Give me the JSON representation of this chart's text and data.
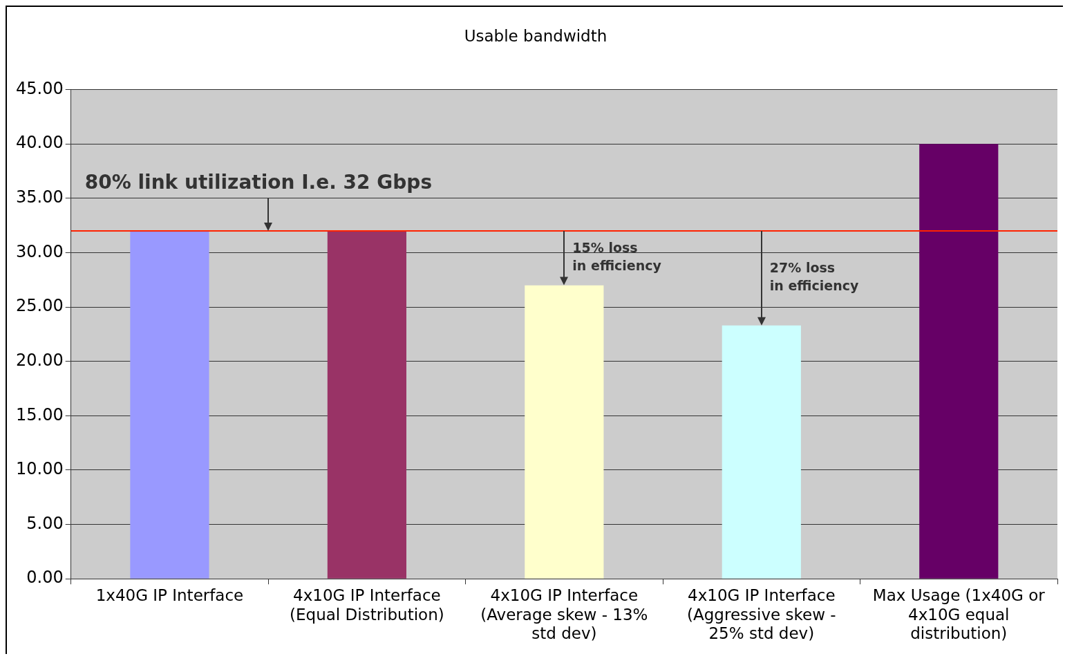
{
  "chart_data": {
    "type": "bar",
    "title": "Usable bandwidth",
    "categories": [
      "1x40G IP Interface",
      "4x10G IP Interface (Equal Distribution)",
      "4x10G IP Interface (Average skew - 13% std dev)",
      "4x10G IP Interface (Aggressive skew - 25% std dev)",
      "Max Usage (1x40G or 4x10G equal distribution)"
    ],
    "values": [
      32,
      32,
      27.0,
      23.3,
      40
    ],
    "colors": [
      "#9999ff",
      "#993366",
      "#ffffcc",
      "#ccffff",
      "#660066"
    ],
    "ylim": [
      0,
      45
    ],
    "yticks": [
      {
        "value": 0,
        "label": "0.00"
      },
      {
        "value": 5,
        "label": "5.00"
      },
      {
        "value": 10,
        "label": "10.00"
      },
      {
        "value": 15,
        "label": "15.00"
      },
      {
        "value": 20,
        "label": "20.00"
      },
      {
        "value": 25,
        "label": "25.00"
      },
      {
        "value": 30,
        "label": "30.00"
      },
      {
        "value": 35,
        "label": "35.00"
      },
      {
        "value": 40,
        "label": "40.00"
      },
      {
        "value": 45,
        "label": "45.00"
      }
    ],
    "grid": "y",
    "legend": false,
    "ref_lines": [
      {
        "axis": "y",
        "value": 32,
        "label": "80% link utilization I.e. 32 Gbps",
        "color": "#ff2200"
      }
    ],
    "annotations": [
      {
        "text": "15% loss\nin efficiency",
        "x": "4x10G IP Interface (Average skew - 13% std dev)",
        "y": 27.0
      },
      {
        "text": "27% loss\nin efficiency",
        "x": "4x10G IP Interface (Aggressive skew - 25% std dev)",
        "y": 23.3
      }
    ]
  }
}
